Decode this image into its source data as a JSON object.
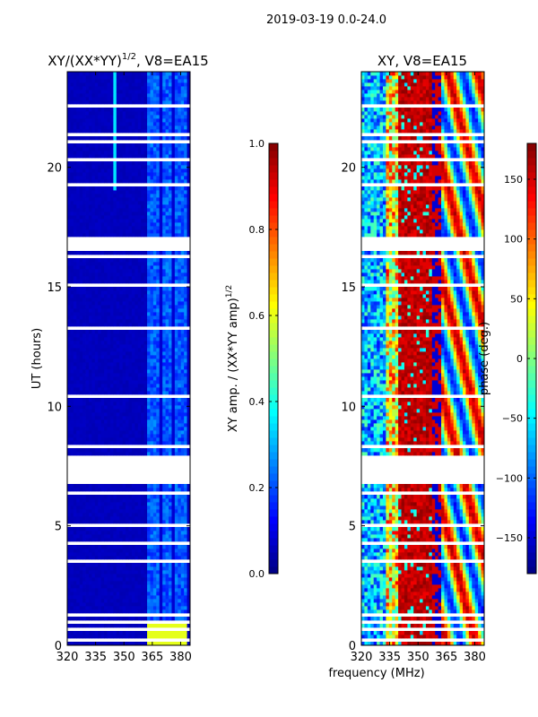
{
  "suptitle": "2019-03-19 0.0-24.0",
  "chart_data": [
    {
      "type": "heatmap",
      "title": "XY/(XX*YY)",
      "title_exponent": "1/2",
      "title_suffix": ", V8=EA15",
      "xlabel": "",
      "ylabel": "UT (hours)",
      "xlim": [
        320,
        385
      ],
      "ylim": [
        0,
        24
      ],
      "xticks": [
        "320",
        "335",
        "350",
        "365",
        "380"
      ],
      "xtick_values": [
        320,
        335,
        350,
        365,
        380
      ],
      "yticks": [
        "0",
        "5",
        "10",
        "15",
        "20"
      ],
      "ytick_values": [
        0,
        5,
        10,
        15,
        20
      ],
      "colormap": "jet",
      "colorbar": {
        "label": "XY amp. / (XX*YY amp)",
        "label_exponent": "1/2",
        "range": [
          0,
          1
        ],
        "ticks": [
          "0.0",
          "0.2",
          "0.4",
          "0.6",
          "0.8",
          "1.0"
        ],
        "tick_values": [
          0,
          0.2,
          0.4,
          0.6,
          0.8,
          1.0
        ]
      },
      "description_values": {
        "background_level": 0.05,
        "high_band_start_mhz": 362,
        "high_band_level": 0.25
      }
    },
    {
      "type": "heatmap",
      "title": "XY, V8=EA15",
      "xlabel": "frequency (MHz)",
      "ylabel": "",
      "xlim": [
        320,
        385
      ],
      "ylim": [
        0,
        24
      ],
      "xticks": [
        "320",
        "335",
        "350",
        "365",
        "380"
      ],
      "xtick_values": [
        320,
        335,
        350,
        365,
        380
      ],
      "yticks": [
        "0",
        "5",
        "10",
        "15",
        "20"
      ],
      "ytick_values": [
        0,
        5,
        10,
        15,
        20
      ],
      "colormap": "jet",
      "colorbar": {
        "label": "phase (deg.)",
        "range": [
          -180,
          180
        ],
        "ticks": [
          "−150",
          "−100",
          "−50",
          "0",
          "50",
          "100",
          "150"
        ],
        "tick_values": [
          -150,
          -100,
          -50,
          0,
          50,
          100,
          150
        ]
      }
    }
  ],
  "data_gaps_hours": [
    [
      0.22,
      0.32
    ],
    [
      0.6,
      0.68
    ],
    [
      0.95,
      1.0
    ],
    [
      1.2,
      1.35
    ],
    [
      1.65,
      1.72
    ],
    [
      3.5,
      3.6
    ],
    [
      4.25,
      4.32
    ],
    [
      5.0,
      5.05
    ],
    [
      5.55,
      5.62
    ],
    [
      6.0,
      6.07
    ],
    [
      6.3,
      6.45
    ],
    [
      6.72,
      7.88
    ],
    [
      8.3,
      8.36
    ],
    [
      9.1,
      9.18
    ],
    [
      10.4,
      10.47
    ],
    [
      11.8,
      11.9
    ],
    [
      13.2,
      13.3
    ],
    [
      15.0,
      15.2
    ],
    [
      16.2,
      16.3
    ],
    [
      16.55,
      17.1
    ],
    [
      17.5,
      17.56
    ],
    [
      18.6,
      18.66
    ],
    [
      19.2,
      19.28
    ],
    [
      20.3,
      20.36
    ],
    [
      21.0,
      21.08
    ],
    [
      21.3,
      21.4
    ],
    [
      22.2,
      22.26
    ],
    [
      22.55,
      22.65
    ],
    [
      22.95,
      23.0
    ]
  ]
}
